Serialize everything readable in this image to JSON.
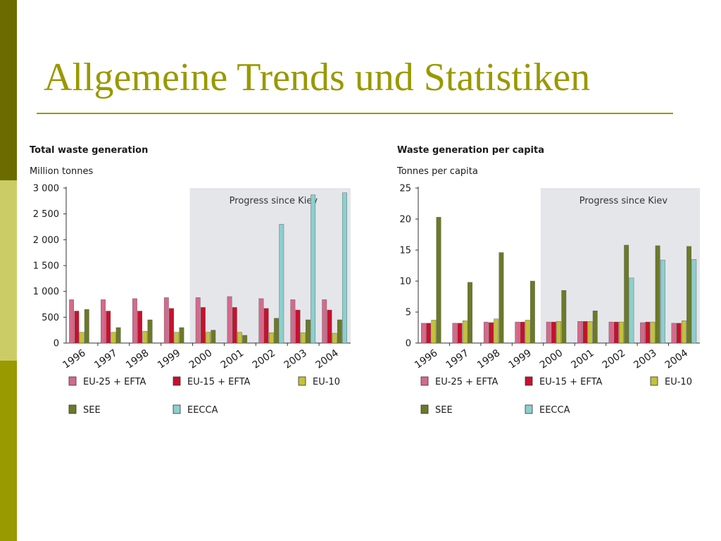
{
  "slide": {
    "title": "Allgemeine Trends und Statistiken",
    "colors": {
      "accent": "#999900",
      "stripe_dark": "#6b6b00",
      "stripe_light": "#cccc66",
      "stripe_mid": "#999900"
    }
  },
  "chart_data": [
    {
      "type": "bar",
      "title": "Total waste generation",
      "ylabel": "Million tonnes",
      "xlabel": "",
      "categories": [
        "1996",
        "1997",
        "1998",
        "1999",
        "2000",
        "2001",
        "2002",
        "2003",
        "2004"
      ],
      "ylim": [
        0,
        3000
      ],
      "yticks": [
        0,
        500,
        1000,
        1500,
        2000,
        2500,
        3000
      ],
      "ytick_labels": [
        "0",
        "500",
        "1 000",
        "1 500",
        "2 000",
        "2 500",
        "3 000"
      ],
      "grid": false,
      "annotation": "Progress since Kiev",
      "highlight_from": "2000",
      "series": [
        {
          "name": "EU-25 + EFTA",
          "color": "#d46a8c",
          "values": [
            840,
            840,
            860,
            880,
            880,
            900,
            860,
            840,
            840
          ]
        },
        {
          "name": "EU-15 + EFTA",
          "color": "#c8102e",
          "values": [
            620,
            620,
            620,
            670,
            690,
            690,
            670,
            640,
            640
          ]
        },
        {
          "name": "EU-10",
          "color": "#c2c23a",
          "values": [
            210,
            210,
            230,
            210,
            210,
            210,
            200,
            200,
            190
          ]
        },
        {
          "name": "SEE",
          "color": "#6b7a28",
          "values": [
            650,
            300,
            450,
            300,
            250,
            150,
            480,
            450,
            450
          ]
        },
        {
          "name": "EECCA",
          "color": "#8ccfcf",
          "values": [
            null,
            null,
            null,
            null,
            null,
            null,
            2300,
            2870,
            2910
          ]
        }
      ]
    },
    {
      "type": "bar",
      "title": "Waste generation per capita",
      "ylabel": "Tonnes per capita",
      "xlabel": "",
      "categories": [
        "1996",
        "1997",
        "1998",
        "1999",
        "2000",
        "2001",
        "2002",
        "2003",
        "2004"
      ],
      "ylim": [
        0,
        25
      ],
      "yticks": [
        0,
        5,
        10,
        15,
        20,
        25
      ],
      "ytick_labels": [
        "0",
        "5",
        "10",
        "15",
        "20",
        "25"
      ],
      "grid": false,
      "annotation": "Progress since Kiev",
      "highlight_from": "2000",
      "series": [
        {
          "name": "EU-25 + EFTA",
          "color": "#d46a8c",
          "values": [
            3.2,
            3.2,
            3.4,
            3.4,
            3.4,
            3.5,
            3.4,
            3.3,
            3.2
          ]
        },
        {
          "name": "EU-15 + EFTA",
          "color": "#c8102e",
          "values": [
            3.2,
            3.2,
            3.3,
            3.4,
            3.4,
            3.5,
            3.4,
            3.4,
            3.2
          ]
        },
        {
          "name": "EU-10",
          "color": "#c2c23a",
          "values": [
            3.7,
            3.6,
            3.9,
            3.7,
            3.5,
            3.5,
            3.4,
            3.4,
            3.6
          ]
        },
        {
          "name": "SEE",
          "color": "#6b7a28",
          "values": [
            20.3,
            9.8,
            14.6,
            10.0,
            8.5,
            5.2,
            15.8,
            15.7,
            15.6
          ]
        },
        {
          "name": "EECCA",
          "color": "#8ccfcf",
          "values": [
            null,
            null,
            null,
            null,
            null,
            null,
            10.5,
            13.4,
            13.5
          ]
        }
      ]
    }
  ]
}
